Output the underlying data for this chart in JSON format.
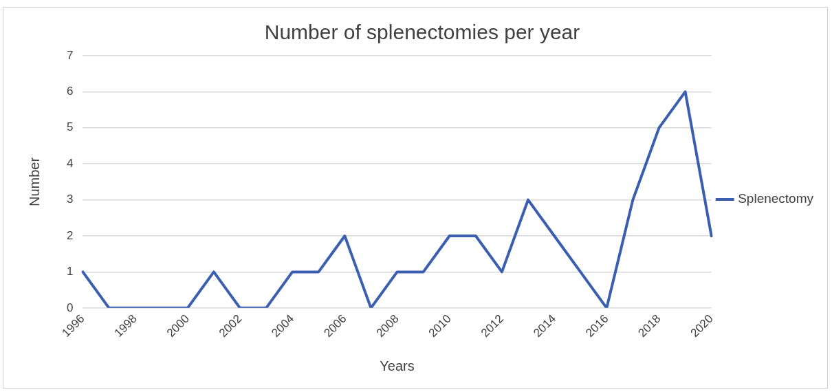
{
  "chart_data": {
    "type": "line",
    "title": "Number of splenectomies per year",
    "xlabel": "Years",
    "ylabel": "Number",
    "categories": [
      "1996",
      null,
      "1998",
      null,
      "2000",
      null,
      "2002",
      null,
      "2004",
      null,
      "2006",
      null,
      "2008",
      null,
      "2010",
      null,
      "2012",
      null,
      "2014",
      null,
      "2016",
      null,
      "2018",
      null,
      "2020"
    ],
    "series": [
      {
        "name": "Splenectomy",
        "color": "#3a5fb0",
        "values": [
          1,
          0,
          0,
          0,
          0,
          1,
          0,
          0,
          1,
          1,
          2,
          0,
          1,
          1,
          2,
          2,
          1,
          3,
          2,
          1,
          0,
          3,
          5,
          6,
          2
        ]
      }
    ],
    "ylim": [
      0,
      7
    ],
    "yticks": [
      0,
      1,
      2,
      3,
      4,
      5,
      6,
      7
    ],
    "grid": "y",
    "legend": "right",
    "marker": "none",
    "line_style": "solid"
  }
}
